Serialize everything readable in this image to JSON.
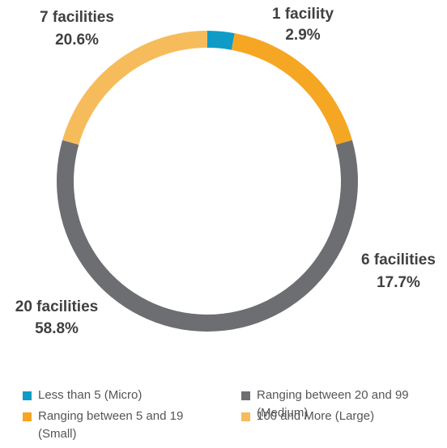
{
  "chart_data": {
    "type": "donut",
    "series": [
      {
        "name": "Less than 5 (Micro)",
        "color": "#0f9bc6",
        "label": "1 facility"
      },
      {
        "name": "Ranging between 5 and 19 (Small)",
        "color": "#f5a623",
        "label": "6 facilities"
      },
      {
        "name": "Ranging between 20 and 99 (Medium)",
        "color": "#6d6e71",
        "label": "20 facilities"
      },
      {
        "name": "100 and More (Large)",
        "color": "#f6bc5c",
        "label": "7 facilities"
      }
    ],
    "values": [
      2.9,
      17.7,
      58.8,
      20.6
    ],
    "value_labels": [
      "2.9%",
      "17.7%",
      "58.8%",
      "20.6%"
    ],
    "legend": "bottom"
  }
}
